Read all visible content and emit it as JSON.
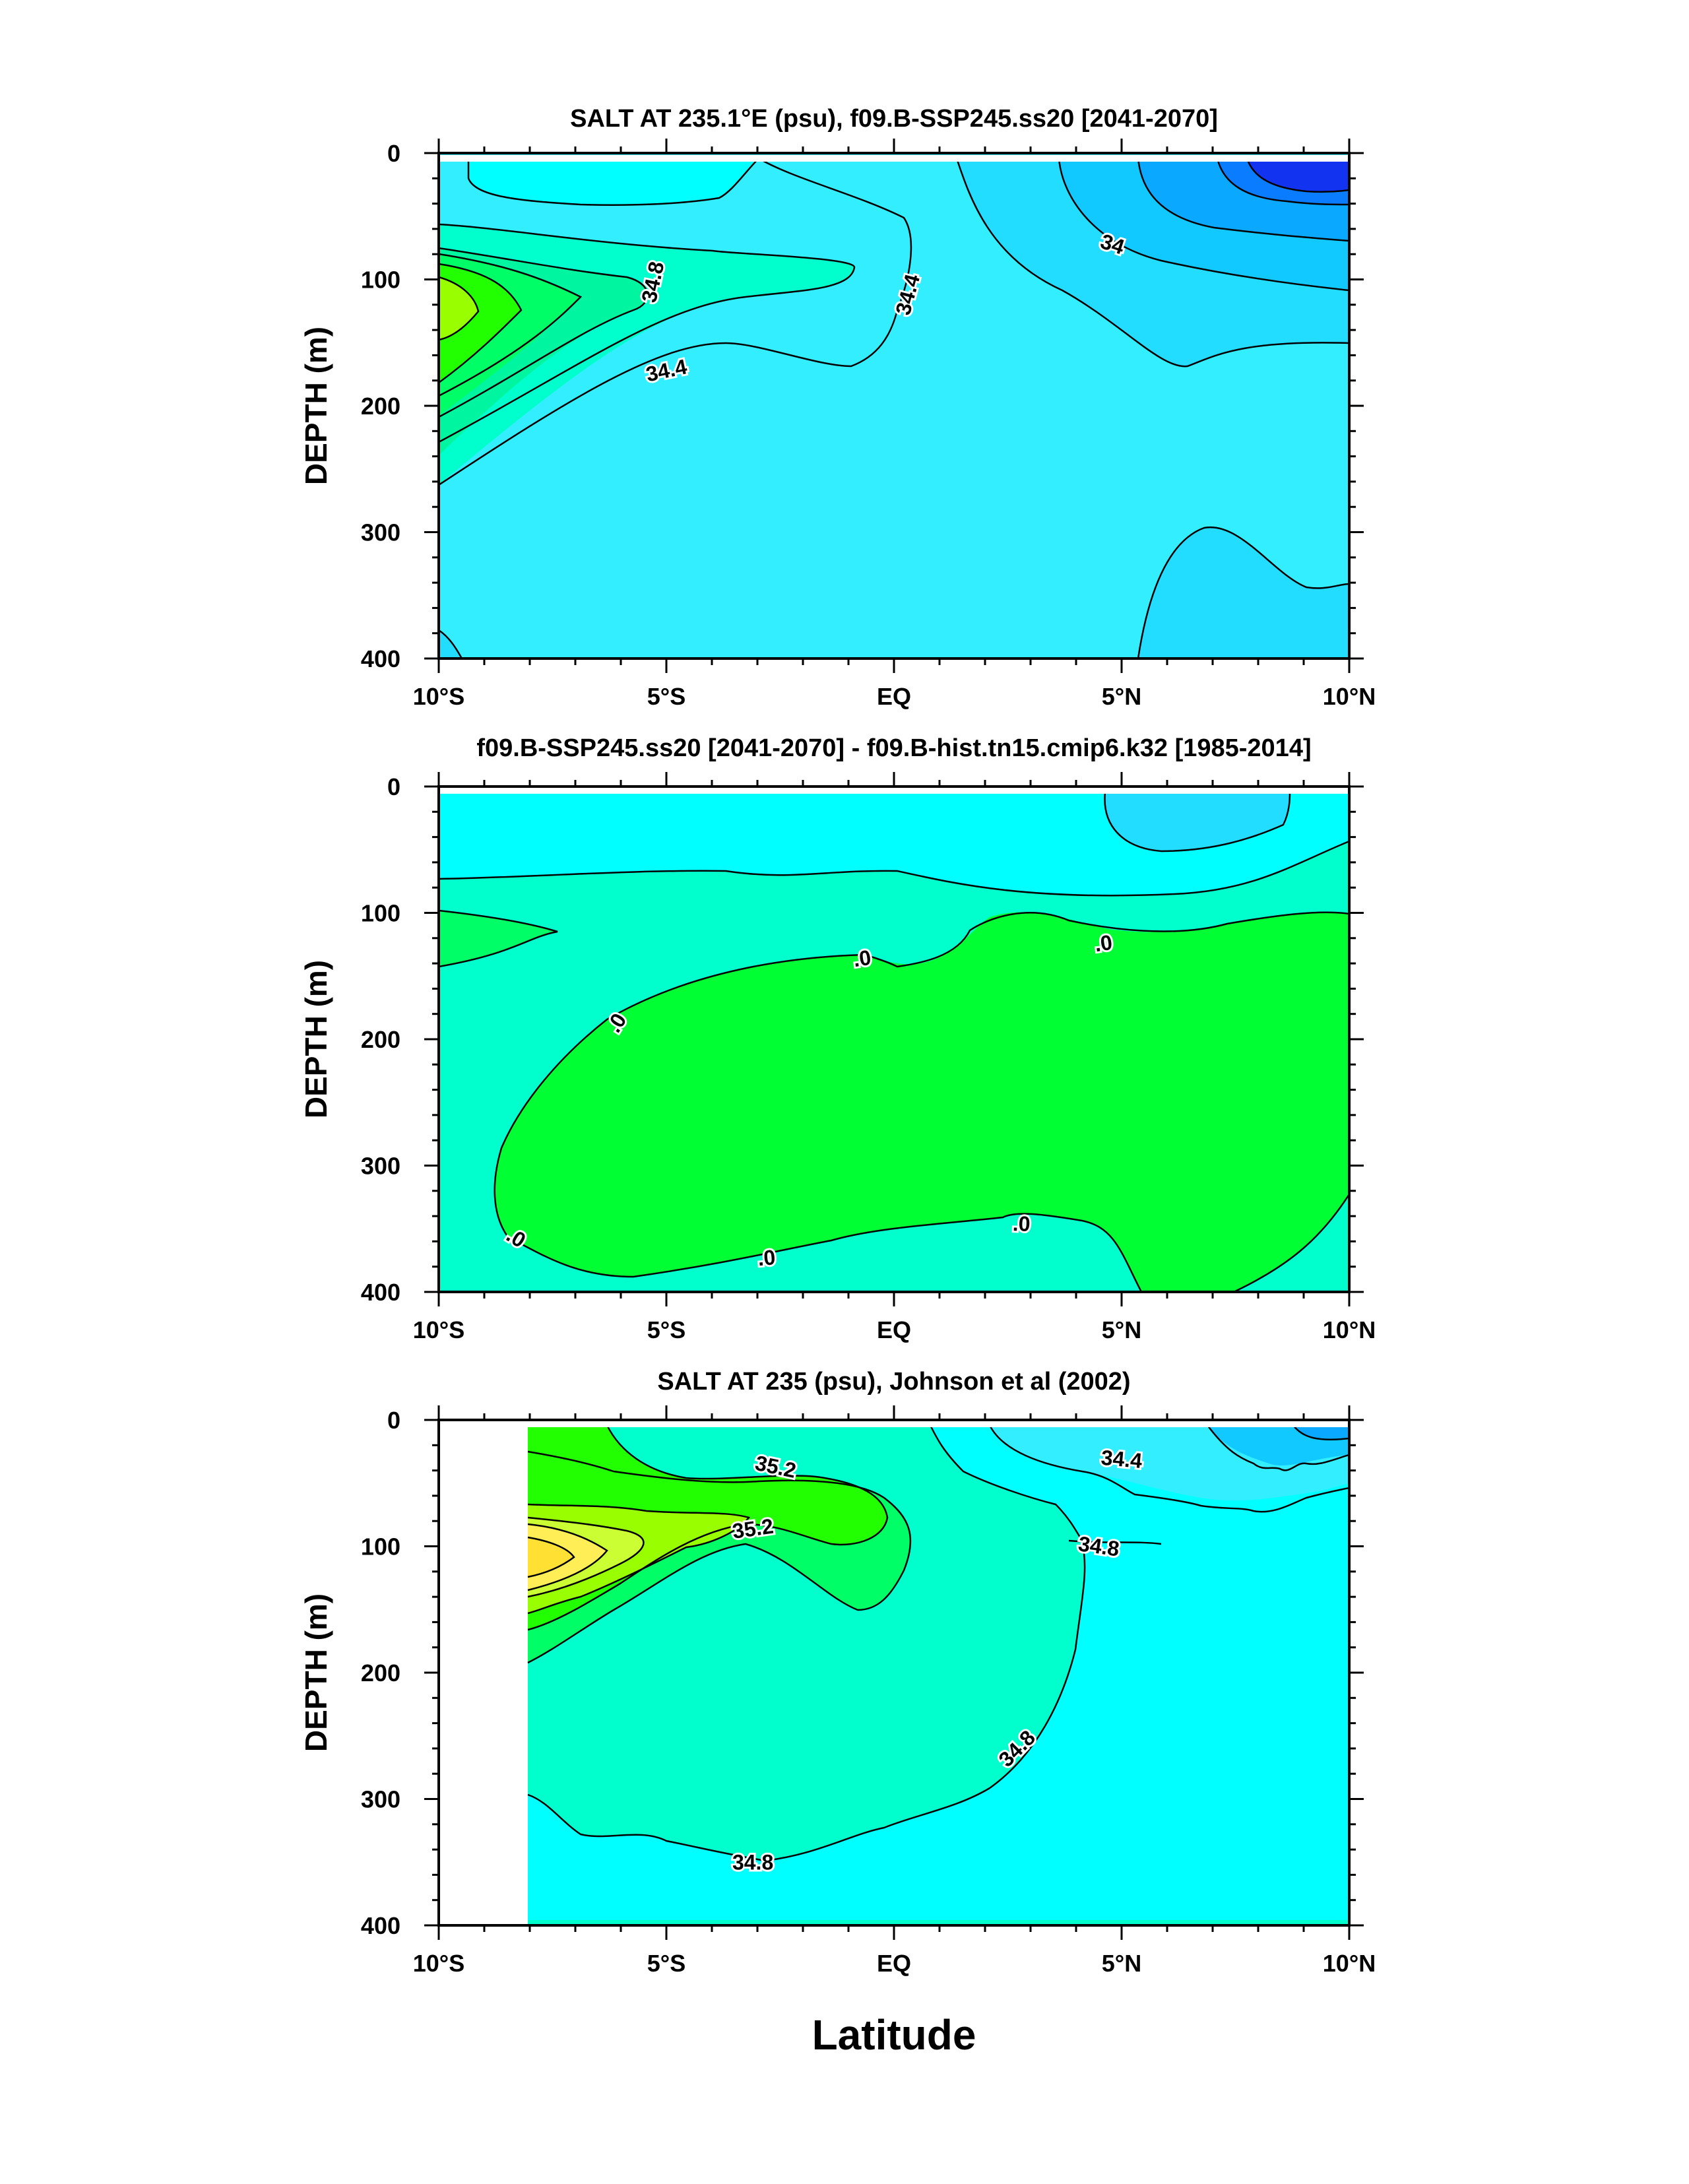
{
  "figure": {
    "x_axis_title": "Latitude"
  },
  "colors": {
    "cyan": "#00ffff",
    "light_cyan": "#33eeff",
    "sky": "#22ddff",
    "mid_blue": "#11c8ff",
    "blue": "#0aa8ff",
    "deep_blue": "#0a7cff",
    "navy": "#1233f0",
    "aqua_green": "#00ffcc",
    "sea_green": "#00f5a0",
    "spring_green": "#00ff66",
    "green": "#22ff00",
    "lime": "#99ff00",
    "yellow_green": "#ccff33",
    "yellow": "#ffff55",
    "gold": "#ffe033",
    "white": "#ffffff",
    "black": "#000000"
  },
  "chart_data": [
    {
      "type": "contour",
      "title": "SALT AT 235.1°E (psu), f09.B-SSP245.ss20 [2041-2070]",
      "xlabel": "",
      "ylabel": "DEPTH (m)",
      "xlim": [
        -10,
        10
      ],
      "ylim": [
        400,
        0
      ],
      "x_ticks": [
        {
          "value": -10,
          "label": "10°S"
        },
        {
          "value": -5,
          "label": "5°S"
        },
        {
          "value": 0,
          "label": "EQ"
        },
        {
          "value": 5,
          "label": "5°N"
        },
        {
          "value": 10,
          "label": "10°N"
        }
      ],
      "y_ticks": [
        {
          "value": 0,
          "label": "0"
        },
        {
          "value": 100,
          "label": "100"
        },
        {
          "value": 200,
          "label": "200"
        },
        {
          "value": 300,
          "label": "300"
        },
        {
          "value": 400,
          "label": "400"
        }
      ],
      "contour_labels": [
        {
          "text": "34.8",
          "lat": -5.3,
          "depth": 102,
          "angle": -78
        },
        {
          "text": "34.4",
          "lat": 0.3,
          "depth": 112,
          "angle": -75
        },
        {
          "text": "34",
          "lat": 4.8,
          "depth": 72,
          "angle": 18
        },
        {
          "text": "34.4",
          "lat": -5.0,
          "depth": 172,
          "angle": -12
        }
      ]
    },
    {
      "type": "contour",
      "title": "f09.B-SSP245.ss20 [2041-2070] - f09.B-hist.tn15.cmip6.k32 [1985-2014]",
      "xlabel": "",
      "ylabel": "DEPTH (m)",
      "xlim": [
        -10,
        10
      ],
      "ylim": [
        400,
        0
      ],
      "x_ticks": [
        {
          "value": -10,
          "label": "10°S"
        },
        {
          "value": -5,
          "label": "5°S"
        },
        {
          "value": 0,
          "label": "EQ"
        },
        {
          "value": 5,
          "label": "5°N"
        },
        {
          "value": 10,
          "label": "10°N"
        }
      ],
      "y_ticks": [
        {
          "value": 0,
          "label": "0"
        },
        {
          "value": 100,
          "label": "100"
        },
        {
          "value": 200,
          "label": "200"
        },
        {
          "value": 300,
          "label": "300"
        },
        {
          "value": 400,
          "label": "400"
        }
      ],
      "contour_labels": [
        {
          "text": ".0",
          "lat": -6.1,
          "depth": 187,
          "angle": -58
        },
        {
          "text": ".0",
          "lat": -0.7,
          "depth": 136,
          "angle": -8
        },
        {
          "text": ".0",
          "lat": 4.6,
          "depth": 124,
          "angle": -8
        },
        {
          "text": ".0",
          "lat": -8.3,
          "depth": 357,
          "angle": 32
        },
        {
          "text": ".0",
          "lat": -2.8,
          "depth": 373,
          "angle": -5
        },
        {
          "text": ".0",
          "lat": 2.8,
          "depth": 346,
          "angle": 2
        }
      ]
    },
    {
      "type": "contour",
      "title": "SALT AT 235 (psu), Johnson et al (2002)",
      "xlabel": "Latitude",
      "ylabel": "DEPTH (m)",
      "xlim": [
        -10,
        10
      ],
      "ylim": [
        400,
        0
      ],
      "x_ticks": [
        {
          "value": -10,
          "label": "10°S"
        },
        {
          "value": -5,
          "label": "5°S"
        },
        {
          "value": 0,
          "label": "EQ"
        },
        {
          "value": 5,
          "label": "5°N"
        },
        {
          "value": 10,
          "label": "10°N"
        }
      ],
      "y_ticks": [
        {
          "value": 0,
          "label": "0"
        },
        {
          "value": 100,
          "label": "100"
        },
        {
          "value": 200,
          "label": "200"
        },
        {
          "value": 300,
          "label": "300"
        },
        {
          "value": 400,
          "label": "400"
        }
      ],
      "contour_labels": [
        {
          "text": "35.2",
          "lat": -2.6,
          "depth": 37,
          "angle": 12
        },
        {
          "text": "35.2",
          "lat": -3.1,
          "depth": 86,
          "angle": -8
        },
        {
          "text": "34.8",
          "lat": 4.5,
          "depth": 100,
          "angle": 8
        },
        {
          "text": "34.4",
          "lat": 5.0,
          "depth": 31,
          "angle": 5
        },
        {
          "text": "34.8",
          "lat": 2.7,
          "depth": 260,
          "angle": -45
        },
        {
          "text": "34.8",
          "lat": -3.1,
          "depth": 350,
          "angle": 0
        }
      ]
    }
  ]
}
